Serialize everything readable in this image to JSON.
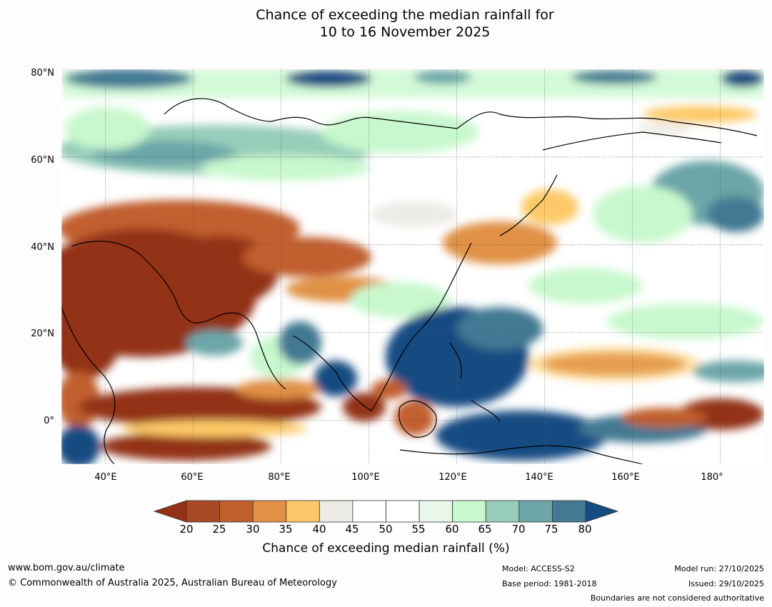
{
  "title": {
    "line1": "Chance of exceeding the median rainfall for",
    "line2": "10 to 16 November 2025"
  },
  "map": {
    "lat_labels": [
      "80°N",
      "60°N",
      "40°N",
      "20°N",
      "0°"
    ],
    "lon_labels": [
      "40°E",
      "60°E",
      "80°E",
      "100°E",
      "120°E",
      "140°E",
      "160°E",
      "180°"
    ],
    "lon_range": [
      30,
      190
    ],
    "lat_range": [
      -10,
      80
    ],
    "colors": {
      "dry_extreme": "#933018",
      "dry": "#c05e2e",
      "dry_mild": "#fdc968",
      "neutral": "#ffffff",
      "neutral_grey": "#ebeae6",
      "wet_mild": "#c8f8cd",
      "wet": "#6ca6a8",
      "wet_extreme": "#154c82",
      "coast": "#000000",
      "border": "#888888"
    }
  },
  "colorbar": {
    "ticks": [
      "20",
      "25",
      "30",
      "35",
      "40",
      "45",
      "50",
      "55",
      "60",
      "65",
      "70",
      "75",
      "80"
    ],
    "colors": [
      "#a84825",
      "#c15e2d",
      "#e09145",
      "#fdc968",
      "#edebe6",
      "#ffffff",
      "#ffffff",
      "#e9f7ea",
      "#c8f8cd",
      "#97cdb9",
      "#6ca6a8",
      "#437993"
    ],
    "under_color": "#933018",
    "over_color": "#154c82",
    "label": "Chance of exceeding median rainfall (%)"
  },
  "footer": {
    "website": "www.bom.gov.au/climate",
    "copyright": "© Commonwealth of Australia 2025, Australian Bureau of Meteorology",
    "model": "Model: ACCESS-S2",
    "base_period": "Base period: 1981-2018",
    "model_run": "Model run: 27/10/2025",
    "issued": "Issued: 29/10/2025",
    "disclaimer": "Boundaries are not considered authoritative"
  }
}
